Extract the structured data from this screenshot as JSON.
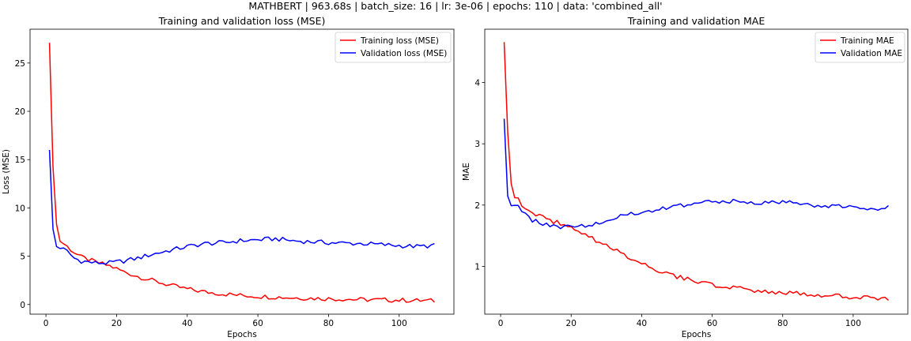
{
  "suptitle": "MATHBERT | 963.68s | batch_size: 16 | lr: 3e-06 | epochs: 110 | data: 'combined_all'",
  "colors": {
    "train": "#ff0000",
    "val": "#0000ff"
  },
  "chart_data": [
    {
      "type": "line",
      "title": "Training and validation loss (MSE)",
      "xlabel": "Epochs",
      "ylabel": "Loss (MSE)",
      "xlim": [
        -4.5,
        115.5
      ],
      "ylim": [
        -1.0,
        28.5
      ],
      "xticks": [
        0,
        20,
        40,
        60,
        80,
        100
      ],
      "yticks": [
        0,
        5,
        10,
        15,
        20,
        25
      ],
      "legend": "top-right",
      "grid": false,
      "series": [
        {
          "name": "Training loss (MSE)",
          "color": "#ff0000",
          "anchors": [
            [
              1,
              27.1
            ],
            [
              2,
              14.2
            ],
            [
              3,
              8.3
            ],
            [
              4,
              6.6
            ],
            [
              6,
              6.0
            ],
            [
              8,
              5.4
            ],
            [
              10,
              4.9
            ],
            [
              14,
              4.4
            ],
            [
              18,
              4.0
            ],
            [
              22,
              3.4
            ],
            [
              26,
              2.9
            ],
            [
              30,
              2.5
            ],
            [
              35,
              2.0
            ],
            [
              40,
              1.6
            ],
            [
              45,
              1.3
            ],
            [
              50,
              1.1
            ],
            [
              55,
              0.95
            ],
            [
              60,
              0.85
            ],
            [
              70,
              0.7
            ],
            [
              80,
              0.6
            ],
            [
              90,
              0.5
            ],
            [
              100,
              0.45
            ],
            [
              110,
              0.38
            ]
          ]
        },
        {
          "name": "Validation loss (MSE)",
          "color": "#0000ff",
          "anchors": [
            [
              1,
              16.0
            ],
            [
              2,
              7.8
            ],
            [
              3,
              6.0
            ],
            [
              4,
              5.9
            ],
            [
              6,
              5.5
            ],
            [
              8,
              4.8
            ],
            [
              10,
              4.5
            ],
            [
              14,
              4.3
            ],
            [
              18,
              4.3
            ],
            [
              22,
              4.5
            ],
            [
              26,
              4.8
            ],
            [
              30,
              5.2
            ],
            [
              35,
              5.6
            ],
            [
              40,
              6.0
            ],
            [
              45,
              6.3
            ],
            [
              50,
              6.4
            ],
            [
              55,
              6.6
            ],
            [
              60,
              6.7
            ],
            [
              65,
              6.8
            ],
            [
              70,
              6.6
            ],
            [
              75,
              6.5
            ],
            [
              80,
              6.4
            ],
            [
              90,
              6.3
            ],
            [
              100,
              6.1
            ],
            [
              105,
              6.0
            ],
            [
              110,
              6.1
            ]
          ]
        }
      ]
    },
    {
      "type": "line",
      "title": "Training and validation MAE",
      "xlabel": "Epochs",
      "ylabel": "MAE",
      "xlim": [
        -4.5,
        115.5
      ],
      "ylim": [
        0.22,
        4.87
      ],
      "xticks": [
        0,
        20,
        40,
        60,
        80,
        100
      ],
      "yticks": [
        1,
        2,
        3,
        4
      ],
      "legend": "top-right",
      "grid": false,
      "series": [
        {
          "name": "Training MAE",
          "color": "#ff0000",
          "anchors": [
            [
              1,
              4.66
            ],
            [
              2,
              3.2
            ],
            [
              3,
              2.35
            ],
            [
              4,
              2.15
            ],
            [
              6,
              2.02
            ],
            [
              8,
              1.92
            ],
            [
              10,
              1.84
            ],
            [
              14,
              1.75
            ],
            [
              18,
              1.68
            ],
            [
              22,
              1.56
            ],
            [
              26,
              1.45
            ],
            [
              30,
              1.33
            ],
            [
              35,
              1.19
            ],
            [
              40,
              1.06
            ],
            [
              45,
              0.93
            ],
            [
              50,
              0.83
            ],
            [
              55,
              0.76
            ],
            [
              60,
              0.7
            ],
            [
              65,
              0.65
            ],
            [
              70,
              0.62
            ],
            [
              80,
              0.57
            ],
            [
              90,
              0.53
            ],
            [
              100,
              0.5
            ],
            [
              110,
              0.46
            ]
          ]
        },
        {
          "name": "Validation MAE",
          "color": "#0000ff",
          "anchors": [
            [
              1,
              3.41
            ],
            [
              2,
              2.15
            ],
            [
              3,
              1.99
            ],
            [
              5,
              1.98
            ],
            [
              7,
              1.86
            ],
            [
              9,
              1.75
            ],
            [
              12,
              1.7
            ],
            [
              16,
              1.65
            ],
            [
              20,
              1.64
            ],
            [
              25,
              1.68
            ],
            [
              30,
              1.76
            ],
            [
              35,
              1.82
            ],
            [
              40,
              1.88
            ],
            [
              45,
              1.94
            ],
            [
              50,
              1.98
            ],
            [
              55,
              2.02
            ],
            [
              60,
              2.05
            ],
            [
              65,
              2.07
            ],
            [
              70,
              2.04
            ],
            [
              75,
              2.03
            ],
            [
              80,
              2.05
            ],
            [
              85,
              2.02
            ],
            [
              90,
              2.0
            ],
            [
              95,
              1.98
            ],
            [
              100,
              1.97
            ],
            [
              105,
              1.92
            ],
            [
              110,
              1.99
            ]
          ]
        }
      ]
    }
  ]
}
